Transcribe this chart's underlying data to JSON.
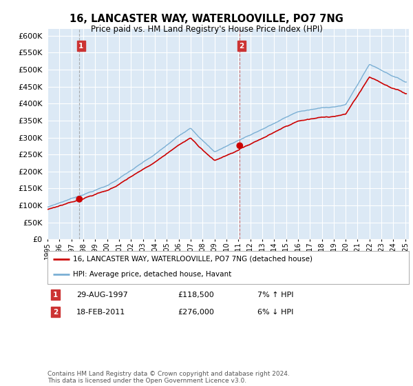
{
  "title": "16, LANCASTER WAY, WATERLOOVILLE, PO7 7NG",
  "subtitle": "Price paid vs. HM Land Registry's House Price Index (HPI)",
  "legend_line1": "16, LANCASTER WAY, WATERLOOVILLE, PO7 7NG (detached house)",
  "legend_line2": "HPI: Average price, detached house, Havant",
  "annotation1_date": "29-AUG-1997",
  "annotation1_price": "£118,500",
  "annotation1_hpi": "7% ↑ HPI",
  "annotation2_date": "18-FEB-2011",
  "annotation2_price": "£276,000",
  "annotation2_hpi": "6% ↓ HPI",
  "footnote": "Contains HM Land Registry data © Crown copyright and database right 2024.\nThis data is licensed under the Open Government Licence v3.0.",
  "ylim": [
    0,
    620000
  ],
  "yticks": [
    0,
    50000,
    100000,
    150000,
    200000,
    250000,
    300000,
    350000,
    400000,
    450000,
    500000,
    550000,
    600000
  ],
  "year_start": 1995,
  "year_end": 2025,
  "bg_color": "#dce9f5",
  "grid_color": "#ffffff",
  "red_line_color": "#cc0000",
  "blue_line_color": "#7aafd4",
  "vline1_color": "#888888",
  "vline2_color": "#cc6666",
  "dot_color": "#cc0000",
  "box_color": "#cc3333",
  "t1_year": 1997.67,
  "t2_year": 2011.12,
  "t1_price": 118500,
  "t2_price": 276000
}
